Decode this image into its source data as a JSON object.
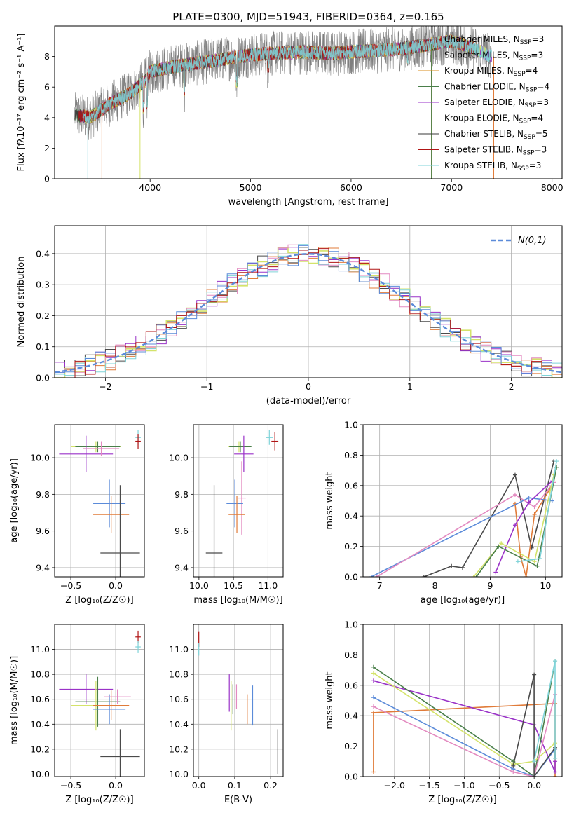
{
  "chart_data": [
    {
      "id": "spectrum",
      "type": "line",
      "title": "PLATE=0300, MJD=51943, FIBERID=0364, z=0.165",
      "xlabel": "wavelength [Angstrom, rest frame]",
      "ylabel": "Flux [fλ10⁻¹⁷ erg cm⁻² s⁻¹ A⁻¹]",
      "xlim": [
        3050,
        8100
      ],
      "ylim": [
        0,
        10
      ],
      "xticks": [
        4000,
        5000,
        6000,
        7000,
        8000
      ],
      "yticks": [
        0,
        2,
        4,
        6,
        8
      ],
      "grid": false,
      "legend_position": "top-right",
      "series": [
        {
          "name": "Chabrier MILES, N_SSP=3",
          "color": "#7f7f7f"
        },
        {
          "name": "Salpeter MILES, N_SSP=3",
          "color": "#e07b39"
        },
        {
          "name": "Kroupa MILES, N_SSP=4",
          "color": "#d98c1e"
        },
        {
          "name": "Chabrier ELODIE, N_SSP=4",
          "color": "#4a7f4a"
        },
        {
          "name": "Salpeter ELODIE, N_SSP=3",
          "color": "#9a32c8"
        },
        {
          "name": "Kroupa ELODIE, N_SSP=4",
          "color": "#d4e36a"
        },
        {
          "name": "Chabrier STELIB, N_SSP=5",
          "color": "#3a3a3a"
        },
        {
          "name": "Salpeter STELIB, N_SSP=3",
          "color": "#b01515"
        },
        {
          "name": "Kroupa STELIB, N_SSP=3",
          "color": "#7fd3d8"
        }
      ],
      "continuum": {
        "x": [
          3250,
          3400,
          3600,
          3800,
          3950,
          4000,
          4200,
          4500,
          4800,
          5000,
          5200,
          5500,
          5800,
          6000,
          6300,
          6500,
          6800,
          7000,
          7200,
          7400
        ],
        "y": [
          4.2,
          4.0,
          4.9,
          5.6,
          6.4,
          7.0,
          7.3,
          7.6,
          7.9,
          8.1,
          8.2,
          8.3,
          8.2,
          8.3,
          8.4,
          8.5,
          8.8,
          9.0,
          8.6,
          8.0
        ]
      }
    },
    {
      "id": "residuals",
      "type": "line",
      "xlabel": "(data-model)/error",
      "ylabel": "Normed distribution",
      "xlim": [
        -2.5,
        2.5
      ],
      "ylim": [
        0,
        0.49
      ],
      "xticks": [
        -2,
        -1,
        0,
        1,
        2
      ],
      "yticks": [
        0.0,
        0.1,
        0.2,
        0.3,
        0.4
      ],
      "grid": true,
      "legend_position": "top-right",
      "reference_curve": {
        "name": "N(0,1)",
        "color": "#5b8bd9",
        "style": "dashed"
      },
      "bin_width": 0.1,
      "bin_start": -2.5,
      "hist_colors": [
        "#4a4a4a",
        "#e07b39",
        "#9a32c8",
        "#d4e36a",
        "#e38ac0",
        "#7fd3d8",
        "#5b8bd9",
        "#b01515"
      ]
    },
    {
      "id": "age-vs-Z",
      "type": "scatter",
      "xlabel": "Z [log₁₀(Z/Z☉)]",
      "ylabel": "age  [log₁₀(age/yr)]",
      "xlim": [
        -0.68,
        0.32
      ],
      "ylim": [
        9.35,
        10.18
      ],
      "xticks": [
        -0.5,
        0.0
      ],
      "yticks": [
        9.4,
        9.6,
        9.8,
        10.0
      ],
      "grid": true,
      "points": [
        {
          "x": 0.25,
          "y": 10.11,
          "xerr": 0.03,
          "yerr": 0.04,
          "color": "#7fd3d8"
        },
        {
          "x": 0.25,
          "y": 10.09,
          "xerr": 0.03,
          "yerr": 0.04,
          "color": "#b01515"
        },
        {
          "x": -0.22,
          "y": 10.06,
          "xerr": 0.28,
          "yerr": 0.03,
          "color": "#d4e36a"
        },
        {
          "x": -0.2,
          "y": 10.06,
          "xerr": 0.25,
          "yerr": 0.03,
          "color": "#4a7f4a"
        },
        {
          "x": -0.33,
          "y": 10.02,
          "xerr": 0.3,
          "yerr": 0.1,
          "color": "#9a32c8"
        },
        {
          "x": -0.16,
          "y": 10.05,
          "xerr": 0.2,
          "yerr": 0.04,
          "color": "#e38ac0"
        },
        {
          "x": -0.07,
          "y": 9.75,
          "xerr": 0.18,
          "yerr": 0.13,
          "color": "#5b8bd9"
        },
        {
          "x": -0.05,
          "y": 9.69,
          "xerr": 0.2,
          "yerr": 0.1,
          "color": "#e07b39"
        },
        {
          "x": 0.05,
          "y": 9.48,
          "xerr": 0.22,
          "yerr": 0.37,
          "color": "#4a4a4a"
        }
      ]
    },
    {
      "id": "age-vs-mass",
      "type": "scatter",
      "xlabel": "mass [log₁₀(M/M☉)]",
      "ylabel": "",
      "xlim": [
        9.92,
        11.22
      ],
      "ylim": [
        9.35,
        10.18
      ],
      "xticks": [
        10.0,
        10.5,
        11.0
      ],
      "yticks": [
        9.4,
        9.6,
        9.8,
        10.0
      ],
      "grid": true,
      "points": [
        {
          "x": 11.02,
          "y": 10.11,
          "xerr": 0.05,
          "yerr": 0.04,
          "color": "#7fd3d8"
        },
        {
          "x": 11.1,
          "y": 10.09,
          "xerr": 0.05,
          "yerr": 0.05,
          "color": "#b01515"
        },
        {
          "x": 10.58,
          "y": 10.06,
          "xerr": 0.15,
          "yerr": 0.03,
          "color": "#d4e36a"
        },
        {
          "x": 10.6,
          "y": 10.06,
          "xerr": 0.16,
          "yerr": 0.03,
          "color": "#4a7f4a"
        },
        {
          "x": 10.65,
          "y": 10.02,
          "xerr": 0.14,
          "yerr": 0.1,
          "color": "#9a32c8"
        },
        {
          "x": 10.62,
          "y": 9.78,
          "xerr": 0.06,
          "yerr": 0.2,
          "color": "#e38ac0"
        },
        {
          "x": 10.52,
          "y": 9.75,
          "xerr": 0.12,
          "yerr": 0.13,
          "color": "#5b8bd9"
        },
        {
          "x": 10.55,
          "y": 9.69,
          "xerr": 0.12,
          "yerr": 0.1,
          "color": "#e07b39"
        },
        {
          "x": 10.22,
          "y": 9.48,
          "xerr": 0.12,
          "yerr": 0.37,
          "color": "#4a4a4a"
        }
      ]
    },
    {
      "id": "weight-vs-age",
      "type": "line",
      "xlabel": "age  [log₁₀(age/yr)]",
      "ylabel": "mass weight",
      "xlim": [
        6.7,
        10.3
      ],
      "ylim": [
        0,
        1.0
      ],
      "xticks": [
        7,
        8,
        9,
        10
      ],
      "yticks": [
        0.0,
        0.2,
        0.4,
        0.6,
        0.8,
        1.0
      ],
      "grid": true,
      "series": [
        {
          "color": "#4a4a4a",
          "x": [
            7.8,
            8.3,
            8.5,
            9.45,
            9.75,
            10.15
          ],
          "y": [
            0.0,
            0.07,
            0.06,
            0.67,
            0.19,
            0.76
          ]
        },
        {
          "color": "#e07b39",
          "x": [
            9.45,
            9.55,
            9.65,
            9.8,
            10.15
          ],
          "y": [
            0.48,
            0.13,
            0.0,
            0.41,
            0.62
          ]
        },
        {
          "color": "#5b8bd9",
          "x": [
            6.85,
            9.7,
            10.12
          ],
          "y": [
            0.0,
            0.52,
            0.5
          ]
        },
        {
          "color": "#e38ac0",
          "x": [
            6.95,
            9.45,
            9.8,
            10.15
          ],
          "y": [
            0.0,
            0.54,
            0.46,
            0.62
          ]
        },
        {
          "color": "#9a32c8",
          "x": [
            9.1,
            9.45,
            9.7,
            10.12
          ],
          "y": [
            0.03,
            0.34,
            0.49,
            0.63
          ]
        },
        {
          "color": "#d4e36a",
          "x": [
            8.7,
            9.2,
            9.8,
            10.15
          ],
          "y": [
            0.0,
            0.22,
            0.1,
            0.67
          ]
        },
        {
          "color": "#4a7f4a",
          "x": [
            8.75,
            9.15,
            9.85,
            10.2
          ],
          "y": [
            0.0,
            0.2,
            0.07,
            0.72
          ]
        },
        {
          "color": "#7fd3d8",
          "x": [
            9.5,
            9.9,
            10.2
          ],
          "y": [
            0.1,
            0.12,
            0.76
          ]
        }
      ]
    },
    {
      "id": "mass-vs-Z",
      "type": "scatter",
      "xlabel": "Z [log₁₀(Z/Z☉)]",
      "ylabel": "mass [log₁₀(M/M☉)]",
      "xlim": [
        -0.68,
        0.32
      ],
      "ylim": [
        9.98,
        11.2
      ],
      "xticks": [
        -0.5,
        0.0
      ],
      "yticks": [
        10.0,
        10.2,
        10.4,
        10.6,
        10.8,
        11.0
      ],
      "grid": true,
      "points": [
        {
          "x": 0.25,
          "y": 11.1,
          "xerr": 0.03,
          "yerr": 0.05,
          "color": "#b01515"
        },
        {
          "x": 0.25,
          "y": 11.02,
          "xerr": 0.03,
          "yerr": 0.05,
          "color": "#7fd3d8"
        },
        {
          "x": -0.33,
          "y": 10.68,
          "xerr": 0.3,
          "yerr": 0.12,
          "color": "#9a32c8"
        },
        {
          "x": -0.2,
          "y": 10.58,
          "xerr": 0.25,
          "yerr": 0.2,
          "color": "#4a7f4a"
        },
        {
          "x": -0.22,
          "y": 10.55,
          "xerr": 0.28,
          "yerr": 0.2,
          "color": "#d4e36a"
        },
        {
          "x": -0.07,
          "y": 10.52,
          "xerr": 0.18,
          "yerr": 0.12,
          "color": "#5b8bd9"
        },
        {
          "x": -0.05,
          "y": 10.55,
          "xerr": 0.2,
          "yerr": 0.12,
          "color": "#e07b39"
        },
        {
          "x": 0.02,
          "y": 10.62,
          "xerr": 0.15,
          "yerr": 0.06,
          "color": "#e38ac0"
        },
        {
          "x": 0.05,
          "y": 10.14,
          "xerr": 0.22,
          "yerr": 0.22,
          "color": "#4a4a4a"
        }
      ]
    },
    {
      "id": "mass-vs-EBV",
      "type": "scatter",
      "xlabel": "E(B-V)",
      "ylabel": "",
      "xlim": [
        -0.015,
        0.235
      ],
      "ylim": [
        9.98,
        11.2
      ],
      "xticks": [
        0.0,
        0.1,
        0.2
      ],
      "yticks": [
        10.0,
        10.2,
        10.4,
        10.6,
        10.8,
        11.0
      ],
      "grid": true,
      "points": [
        {
          "x": 0.0,
          "y": 11.08,
          "xerr": 0,
          "yerr": 0.06,
          "color": "#b01515"
        },
        {
          "x": 0.0,
          "y": 11.0,
          "xerr": 0,
          "yerr": 0.05,
          "color": "#7fd3d8"
        },
        {
          "x": 0.085,
          "y": 10.65,
          "xerr": 0,
          "yerr": 0.15,
          "color": "#9a32c8"
        },
        {
          "x": 0.09,
          "y": 10.55,
          "xerr": 0,
          "yerr": 0.2,
          "color": "#d4e36a"
        },
        {
          "x": 0.095,
          "y": 10.6,
          "xerr": 0,
          "yerr": 0.12,
          "color": "#4a7f4a"
        },
        {
          "x": 0.105,
          "y": 10.62,
          "xerr": 0,
          "yerr": 0.1,
          "color": "#e38ac0"
        },
        {
          "x": 0.135,
          "y": 10.52,
          "xerr": 0,
          "yerr": 0.12,
          "color": "#e07b39"
        },
        {
          "x": 0.15,
          "y": 10.55,
          "xerr": 0,
          "yerr": 0.16,
          "color": "#5b8bd9"
        },
        {
          "x": 0.22,
          "y": 10.18,
          "xerr": 0,
          "yerr": 0.18,
          "color": "#4a4a4a"
        }
      ]
    },
    {
      "id": "weight-vs-Z",
      "type": "line",
      "xlabel": "Z [log₁₀(Z/Z☉)]",
      "ylabel": "mass weight",
      "xlim": [
        -2.45,
        0.4
      ],
      "ylim": [
        0,
        1.0
      ],
      "xticks": [
        -2.0,
        -1.5,
        -1.0,
        -0.5,
        0.0
      ],
      "yticks": [
        0.0,
        0.2,
        0.4,
        0.6,
        0.8,
        1.0
      ],
      "grid": true,
      "series": [
        {
          "color": "#e07b39",
          "x": [
            -2.3,
            -2.3,
            0.3,
            0.3
          ],
          "y": [
            0.03,
            0.42,
            0.48,
            0.0
          ]
        },
        {
          "color": "#9a32c8",
          "x": [
            -2.3,
            0.0,
            0.3,
            0.3
          ],
          "y": [
            0.63,
            0.34,
            0.03,
            0.1
          ]
        },
        {
          "color": "#4a7f4a",
          "x": [
            -2.3,
            -0.3,
            0.0,
            0.3
          ],
          "y": [
            0.72,
            0.1,
            0.0,
            0.76
          ]
        },
        {
          "color": "#d4e36a",
          "x": [
            -2.3,
            -0.3,
            0.0,
            0.3
          ],
          "y": [
            0.68,
            0.08,
            0.1,
            0.22
          ]
        },
        {
          "color": "#5b8bd9",
          "x": [
            -2.3,
            -0.3,
            0.0,
            0.3
          ],
          "y": [
            0.52,
            0.05,
            0.0,
            0.18
          ]
        },
        {
          "color": "#e38ac0",
          "x": [
            -2.3,
            -0.3,
            0.0,
            0.3
          ],
          "y": [
            0.46,
            0.03,
            0.0,
            0.54
          ]
        },
        {
          "color": "#4a4a4a",
          "x": [
            -0.3,
            0.0,
            0.0,
            0.3,
            0.3
          ],
          "y": [
            0.07,
            0.67,
            0.0,
            0.19,
            0.12
          ]
        },
        {
          "color": "#7fd3d8",
          "x": [
            0.0,
            0.3,
            0.3
          ],
          "y": [
            0.1,
            0.76,
            0.12
          ]
        }
      ]
    }
  ]
}
